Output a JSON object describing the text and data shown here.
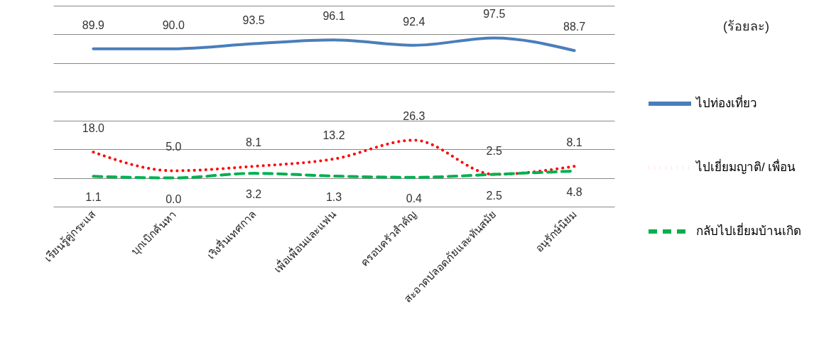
{
  "chart_data": {
    "type": "line",
    "categories": [
      "เรียนรู้คู่กระแส",
      "บุกเบิกค้นหา",
      "เริงรื่นเทศกาล",
      "เพื่อเพื่อนและแฟน",
      "ครอบครัวสำคัญ",
      "สะอาดปลอดภัยและทันสมัย",
      "อนุรักษ์นิยม"
    ],
    "series": [
      {
        "name": "ไปท่องเที่ยว",
        "color": "#4a7ebb",
        "line_style": "solid",
        "values": [
          89.9,
          90.0,
          93.5,
          96.1,
          92.4,
          97.5,
          88.7
        ],
        "value_labels": [
          "89.9",
          "90.0",
          "93.5",
          "96.1",
          "92.4",
          "97.5",
          "88.7"
        ]
      },
      {
        "name": "ไปเยี่ยมญาติ/ เพื่อน",
        "color": "#ff0000",
        "line_style": "dotted",
        "values": [
          18.0,
          5.0,
          8.1,
          13.2,
          26.3,
          2.5,
          8.1
        ],
        "value_labels": [
          "18.0",
          "5.0",
          "8.1",
          "13.2",
          "26.3",
          "2.5",
          "8.1"
        ]
      },
      {
        "name": "กลับไปเยี่ยมบ้านเกิด",
        "color": "#00b050",
        "line_style": "dashed",
        "values": [
          1.1,
          0.0,
          3.2,
          1.3,
          0.4,
          2.5,
          4.8
        ],
        "value_labels": [
          "1.1",
          "0.0",
          "3.2",
          "1.3",
          "0.4",
          "2.5",
          "4.8"
        ]
      }
    ],
    "ylim": [
      -20,
      120
    ],
    "yticks": [
      {
        "value": -20,
        "label": null
      },
      {
        "value": 0,
        "label": null
      },
      {
        "value": 20,
        "label": null
      },
      {
        "value": 40,
        "label": null
      },
      {
        "value": 60,
        "label": null
      },
      {
        "value": 80,
        "label": null
      },
      {
        "value": 100,
        "label": null
      },
      {
        "value": 120,
        "label": null
      }
    ],
    "tick_labels": "x",
    "grid": "y",
    "legend": "right",
    "data_labels": true,
    "annotations": [
      "(ร้อยละ)"
    ]
  }
}
